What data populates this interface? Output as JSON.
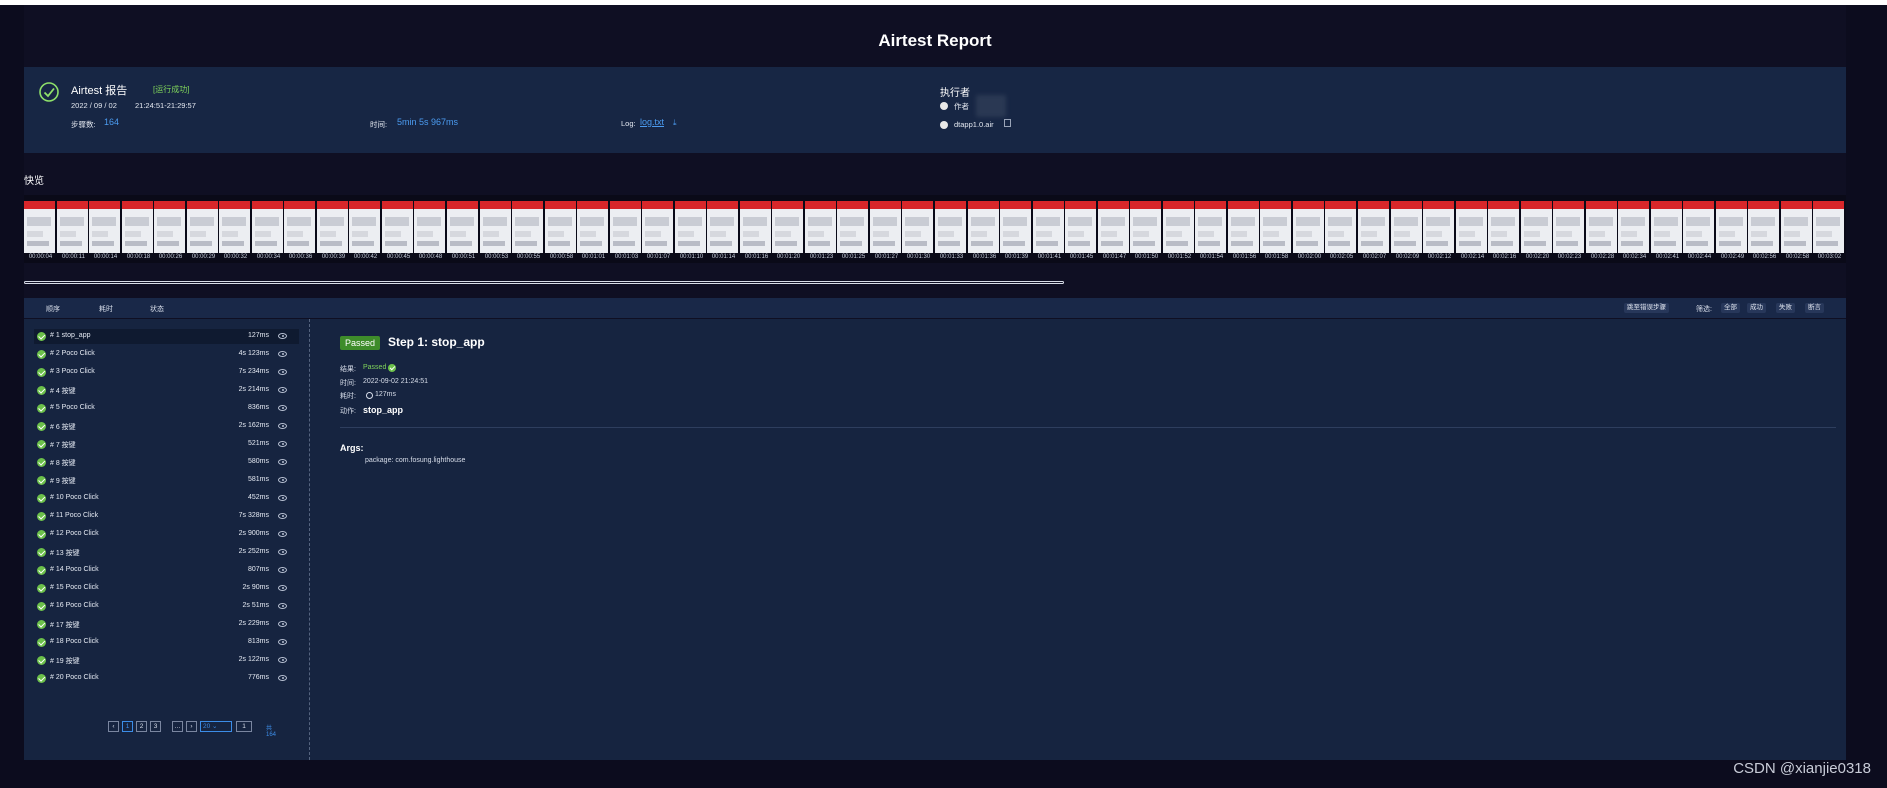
{
  "report": {
    "title": "Airtest Report"
  },
  "summary": {
    "title": "Airtest 报告",
    "status": "[运行成功]",
    "date": "2022 / 09 / 02",
    "time_range": "21:24:51-21:29:57",
    "steps_label": "步骤数:",
    "steps_value": "164",
    "duration_label": "时间:",
    "duration_value": "5min 5s 967ms",
    "log_label": "Log:",
    "log_value": "log.txt",
    "executor_label": "执行者",
    "author_label": "作者",
    "script_name": "dtapp1.0.air",
    "icons": [
      "check-circle-icon",
      "download-icon",
      "copy-icon"
    ]
  },
  "quick_view": {
    "label": "快览",
    "timestamps": [
      "00:00:04",
      "00:00:11",
      "00:00:14",
      "00:00:18",
      "00:00:26",
      "00:00:29",
      "00:00:32",
      "00:00:34",
      "00:00:36",
      "00:00:39",
      "00:00:42",
      "00:00:45",
      "00:00:48",
      "00:00:51",
      "00:00:53",
      "00:00:55",
      "00:00:58",
      "00:01:01",
      "00:01:03",
      "00:01:07",
      "00:01:10",
      "00:01:14",
      "00:01:16",
      "00:01:20",
      "00:01:23",
      "00:01:25",
      "00:01:27",
      "00:01:30",
      "00:01:33",
      "00:01:36",
      "00:01:39",
      "00:01:41",
      "00:01:45",
      "00:01:47",
      "00:01:50",
      "00:01:52",
      "00:01:54",
      "00:01:56",
      "00:01:58",
      "00:02:00",
      "00:02:05",
      "00:02:07",
      "00:02:09",
      "00:02:12",
      "00:02:14",
      "00:02:16",
      "00:02:20",
      "00:02:23",
      "00:02:28",
      "00:02:34",
      "00:02:41",
      "00:02:44",
      "00:02:49",
      "00:02:56",
      "00:02:58",
      "00:03:02"
    ]
  },
  "toolbar": {
    "tabs": [
      "顺序",
      "耗时",
      "状态"
    ],
    "jump_error": "跳至错误步骤",
    "filter_label": "筛选:",
    "filters": [
      "全部",
      "成功",
      "失败",
      "断言"
    ]
  },
  "steps": [
    {
      "name": "# 1 stop_app",
      "dur": "127ms"
    },
    {
      "name": "# 2 Poco Click",
      "dur": "4s 123ms"
    },
    {
      "name": "# 3 Poco Click",
      "dur": "7s 234ms"
    },
    {
      "name": "# 4 按键",
      "dur": "2s 214ms"
    },
    {
      "name": "# 5 Poco Click",
      "dur": "836ms"
    },
    {
      "name": "# 6 按键",
      "dur": "2s 162ms"
    },
    {
      "name": "# 7 按键",
      "dur": "521ms"
    },
    {
      "name": "# 8 按键",
      "dur": "580ms"
    },
    {
      "name": "# 9 按键",
      "dur": "581ms"
    },
    {
      "name": "# 10 Poco Click",
      "dur": "452ms"
    },
    {
      "name": "# 11 Poco Click",
      "dur": "7s 328ms"
    },
    {
      "name": "# 12 Poco Click",
      "dur": "2s 900ms"
    },
    {
      "name": "# 13 按键",
      "dur": "2s 252ms"
    },
    {
      "name": "# 14 Poco Click",
      "dur": "807ms"
    },
    {
      "name": "# 15 Poco Click",
      "dur": "2s 90ms"
    },
    {
      "name": "# 16 Poco Click",
      "dur": "2s 51ms"
    },
    {
      "name": "# 17 按键",
      "dur": "2s 229ms"
    },
    {
      "name": "# 18 Poco Click",
      "dur": "813ms"
    },
    {
      "name": "# 19 按键",
      "dur": "2s 122ms"
    },
    {
      "name": "# 20 Poco Click",
      "dur": "776ms"
    }
  ],
  "pagination": {
    "prev": "‹",
    "pages": [
      "1",
      "2",
      "3"
    ],
    "current": "1",
    "ellipsis": "…",
    "next": "›",
    "page_size": "20",
    "go": "1",
    "total": "共 164"
  },
  "detail": {
    "badge": "Passed",
    "title": "Step 1: stop_app",
    "result_label": "结果:",
    "result_value": "Passed",
    "time_label": "时间:",
    "time_value": "2022-09-02 21:24:51",
    "cost_label": "耗时:",
    "cost_value": "127ms",
    "action_label": "动作:",
    "action_value": "stop_app",
    "args_label": "Args:",
    "args_value": "package: com.fosung.lighthouse"
  },
  "watermark": "CSDN @xianjie0318"
}
